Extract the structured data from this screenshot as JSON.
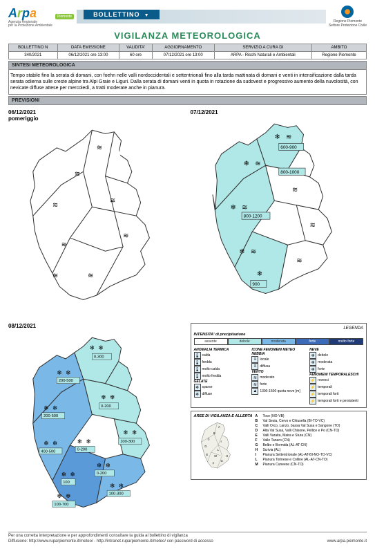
{
  "header": {
    "brand": "Arpa",
    "brand_sub1": "Agenzia Regionale",
    "brand_sub2": "per la Protezione Ambientale",
    "piemonte_tag": "Piemonte",
    "tab_label": "BOLLETTINO",
    "right_line1": "Regione Piemonte",
    "right_line2": "Settore Protezione Civile"
  },
  "title": "VIGILANZA METEOROLOGICA",
  "meta": {
    "headers": [
      "BOLLETTINO N",
      "DATA EMISSIONE",
      "VALIDITA'",
      "AGGIORNAMENTO",
      "SERVIZIO A CURA DI",
      "AMBITO"
    ],
    "values": [
      "340/2021",
      "06/12/2021 ore 13:00",
      "60 ore",
      "07/12/2021 ore 13:00",
      "ARPA - Rischi Naturali e Ambientali",
      "Regione Piemonte"
    ]
  },
  "sintesi": {
    "label": "SINTESI METEOROLOGICA",
    "text": "Tempo stabile fino la serata di domani, con foehn nelle valli nordoccidentali e settentrionali fino alla tarda mattinata di domani e venti in intensificazione dalla tarda serata odierna sulle creste alpine tra Alpi Graie e Liguri. Dalla serata di domani venti in quota in rotazione da sudovest e progressivo aumento della nuvolosità, con nevicate diffuse attese per mercoledì, a tratti moderate anche in pianura."
  },
  "previsioni_label": "PREVISIONI",
  "maps": [
    {
      "date": "06/12/2021",
      "sub": "pomeriggio"
    },
    {
      "date": "07/12/2021",
      "sub": ""
    },
    {
      "date": "08/12/2021",
      "sub": ""
    }
  ],
  "map2_labels": [
    "600-900",
    "800-1000",
    "800-1200",
    "900"
  ],
  "map3_labels": [
    "0-300",
    "200-500",
    "200-500",
    "0-200",
    "100-300",
    "400-500",
    "0-200",
    "100",
    "0-200",
    "100-700",
    "100-300"
  ],
  "legend": {
    "title": "LEGENDA",
    "intensity_label": "INTENSITA' di precipitazione",
    "intensity": [
      {
        "label": "assente",
        "bg": "#ffffff",
        "fg": "#333"
      },
      {
        "label": "debole",
        "bg": "#b0e8e8",
        "fg": "#333"
      },
      {
        "label": "moderata",
        "bg": "#7ab8e8",
        "fg": "#333"
      },
      {
        "label": "forte",
        "bg": "#3a6ab8",
        "fg": "#fff"
      },
      {
        "label": "molto forte",
        "bg": "#203a78",
        "fg": "#fff"
      }
    ],
    "cols": [
      {
        "h1": "ANOMALIA TERMICA",
        "items1": [
          [
            "🌡",
            "calda"
          ],
          [
            "🌡",
            "fredda"
          ],
          [
            "🌡",
            "molto calda"
          ],
          [
            "🌡",
            "molto fredda"
          ]
        ],
        "h2": "GELATE",
        "items2": [
          [
            "❄",
            "sparse"
          ],
          [
            "❄",
            "diffuse"
          ]
        ]
      },
      {
        "h1": "ICONE FENOMENI METEO",
        "items1": [],
        "h2": "NEBBIA",
        "items2": [
          [
            "≡",
            "locale"
          ],
          [
            "≡",
            "diffusa"
          ]
        ],
        "h3": "VENTO",
        "items3": [
          [
            "≋",
            "moderato"
          ],
          [
            "≋",
            "forte"
          ],
          [
            "▲",
            "1300-1500 quota neve [m]"
          ]
        ]
      },
      {
        "h1": "NEVE",
        "items1": [
          [
            "❄",
            "debole"
          ],
          [
            "❄",
            "moderata"
          ],
          [
            "❄",
            "forte"
          ]
        ],
        "h2": "FENOMENI TEMPORALESCHI",
        "items2": [
          [
            "⚡",
            "rovesci"
          ],
          [
            "⚡",
            "temporali"
          ],
          [
            "⚡",
            "temporali forti"
          ],
          [
            "⚡",
            "temporali forti e persistenti"
          ]
        ]
      }
    ]
  },
  "aree": {
    "title": "AREE DI VIGILANZA E ALLERTA",
    "rows": [
      [
        "A",
        "Toce (NO-VB)"
      ],
      [
        "B",
        "Val Sesia, Cervo e Chiusella (BI-TO-VC)"
      ],
      [
        "C",
        "Valli Orco, Lanzo, bassa Val Susa e Sangone (TO)"
      ],
      [
        "D",
        "Alta Val Susa, Valli Chisone, Pellice e Po (CN-TO)"
      ],
      [
        "E",
        "Valli Varaita, Maira e Stura (CN)"
      ],
      [
        "F",
        "Valle Tanaro (CN)"
      ],
      [
        "G",
        "Belbo e Bormida (AL-AT-CN)"
      ],
      [
        "H",
        "Scrivia (AL)"
      ],
      [
        "I",
        "Pianura Settentrionale (AL-AT-BI-NO-TO-VC)"
      ],
      [
        "L",
        "Pianura Torinese e Colline (AL-AT-CN-TO)"
      ],
      [
        "M",
        "Pianura Cuneese (CN-TO)"
      ]
    ]
  },
  "footer": {
    "guide": "Per una corretta interpretazione e per approfondimenti consultare la guida al bollettino di vigilanza",
    "diffusione": "Diffusione: http://www.ruparpiemonte.it/meteo/ - http://intranet.ruparpiemonte.it/meteo/ con password di accesso",
    "url": "www.arpa.piemonte.it"
  },
  "colors": {
    "title": "#2a8a5a",
    "tab_bg": "#0a5a8a",
    "section_bg": "#b0b6bc",
    "meta_th_bg": "#d0d4d8",
    "cyan": "#b0e8e8",
    "blue1": "#7ab8e8",
    "blue2": "#5a9ad8"
  }
}
